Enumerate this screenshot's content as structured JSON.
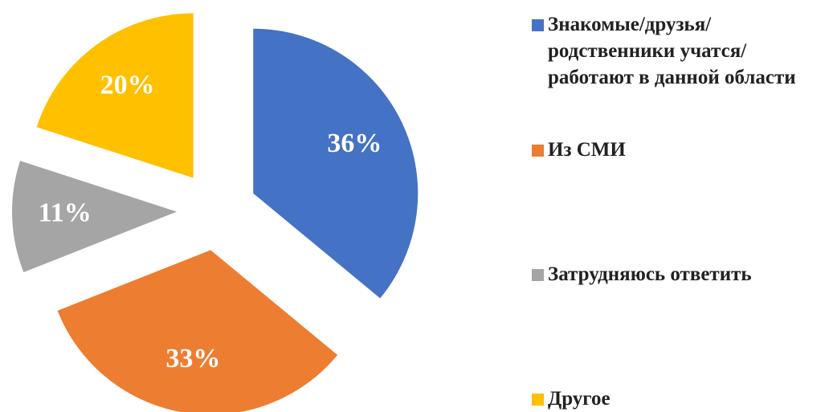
{
  "chart_data": {
    "type": "pie",
    "categories": [
      "Знакомые/друзья/родственники учатся/работают в данной области",
      "Из СМИ",
      "Затрудняюсь ответить",
      "Другое"
    ],
    "values": [
      36,
      33,
      11,
      20
    ],
    "value_labels": [
      "36%",
      "33%",
      "11%",
      "20%"
    ],
    "colors": [
      "#4472c4",
      "#ed7d31",
      "#a5a5a5",
      "#ffc000"
    ],
    "legend": "right"
  }
}
